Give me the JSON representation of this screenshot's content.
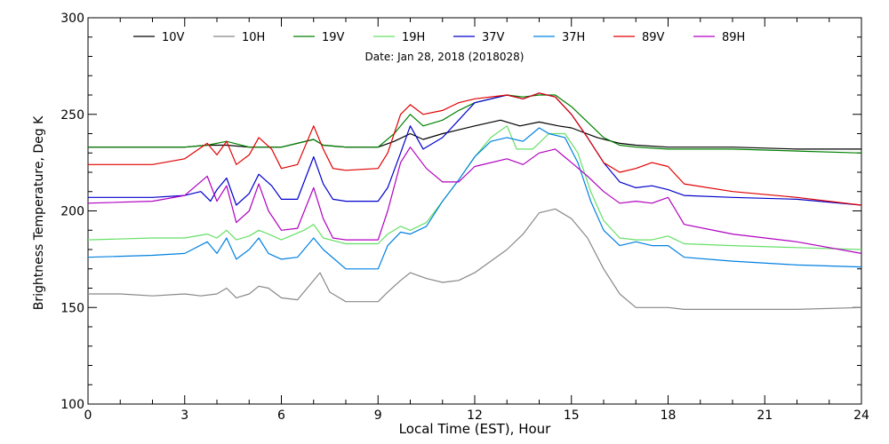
{
  "chart_data": {
    "type": "line",
    "title": "Date: Jan 28, 2018 (2018028)",
    "xlabel": "Local Time (EST), Hour",
    "ylabel": "Brightness Temperature, Deg K",
    "xlim": [
      0,
      24
    ],
    "ylim": [
      100,
      300
    ],
    "xticks": [
      0,
      3,
      6,
      9,
      12,
      15,
      18,
      21,
      24
    ],
    "yticks": [
      100,
      150,
      200,
      250,
      300
    ],
    "grid": false,
    "legend_position": "top",
    "series": [
      {
        "name": "10V",
        "color": "#000000",
        "points": [
          [
            0,
            233
          ],
          [
            2,
            233
          ],
          [
            3,
            233
          ],
          [
            3.7,
            234
          ],
          [
            4.3,
            234
          ],
          [
            5,
            233
          ],
          [
            6,
            233
          ],
          [
            7,
            237
          ],
          [
            7.3,
            234
          ],
          [
            8,
            233
          ],
          [
            9,
            233
          ],
          [
            9.5,
            236
          ],
          [
            10,
            240
          ],
          [
            10.4,
            237
          ],
          [
            11,
            240
          ],
          [
            11.5,
            242
          ],
          [
            12,
            244
          ],
          [
            12.8,
            247
          ],
          [
            13.4,
            244
          ],
          [
            14,
            246
          ],
          [
            14.6,
            244
          ],
          [
            15,
            243
          ],
          [
            15.8,
            238
          ],
          [
            16.5,
            235
          ],
          [
            17,
            234
          ],
          [
            18,
            233
          ],
          [
            20,
            233
          ],
          [
            22,
            232
          ],
          [
            24,
            232
          ]
        ]
      },
      {
        "name": "10H",
        "color": "#888888",
        "points": [
          [
            0,
            157
          ],
          [
            1,
            157
          ],
          [
            2,
            156
          ],
          [
            3,
            157
          ],
          [
            3.5,
            156
          ],
          [
            4,
            157
          ],
          [
            4.3,
            160
          ],
          [
            4.6,
            155
          ],
          [
            5,
            157
          ],
          [
            5.3,
            161
          ],
          [
            5.6,
            160
          ],
          [
            6,
            155
          ],
          [
            6.5,
            154
          ],
          [
            7,
            164
          ],
          [
            7.2,
            168
          ],
          [
            7.5,
            158
          ],
          [
            8,
            153
          ],
          [
            9,
            153
          ],
          [
            9.3,
            158
          ],
          [
            9.7,
            164
          ],
          [
            10,
            168
          ],
          [
            10.5,
            165
          ],
          [
            11,
            163
          ],
          [
            11.5,
            164
          ],
          [
            12,
            168
          ],
          [
            12.5,
            174
          ],
          [
            13,
            180
          ],
          [
            13.5,
            188
          ],
          [
            14,
            199
          ],
          [
            14.5,
            201
          ],
          [
            15,
            196
          ],
          [
            15.5,
            186
          ],
          [
            16,
            170
          ],
          [
            16.5,
            157
          ],
          [
            17,
            150
          ],
          [
            18,
            150
          ],
          [
            18.5,
            149
          ],
          [
            20,
            149
          ],
          [
            22,
            149
          ],
          [
            24,
            150
          ]
        ]
      },
      {
        "name": "19V",
        "color": "#008000",
        "points": [
          [
            0,
            233
          ],
          [
            2,
            233
          ],
          [
            3,
            233
          ],
          [
            3.7,
            234
          ],
          [
            4.3,
            236
          ],
          [
            5,
            233
          ],
          [
            6,
            233
          ],
          [
            7,
            237
          ],
          [
            7.3,
            234
          ],
          [
            8,
            233
          ],
          [
            9,
            233
          ],
          [
            9.5,
            240
          ],
          [
            10,
            250
          ],
          [
            10.4,
            244
          ],
          [
            11,
            247
          ],
          [
            11.5,
            252
          ],
          [
            12,
            256
          ],
          [
            13,
            260
          ],
          [
            13.5,
            259
          ],
          [
            14,
            260
          ],
          [
            14.5,
            260
          ],
          [
            15,
            254
          ],
          [
            15.5,
            246
          ],
          [
            16,
            238
          ],
          [
            16.5,
            234
          ],
          [
            17,
            233
          ],
          [
            18,
            232
          ],
          [
            20,
            232
          ],
          [
            22,
            231
          ],
          [
            24,
            230
          ]
        ]
      },
      {
        "name": "19H",
        "color": "#66E066",
        "points": [
          [
            0,
            185
          ],
          [
            2,
            186
          ],
          [
            3,
            186
          ],
          [
            3.7,
            188
          ],
          [
            4,
            186
          ],
          [
            4.3,
            190
          ],
          [
            4.6,
            185
          ],
          [
            5,
            187
          ],
          [
            5.3,
            190
          ],
          [
            5.6,
            188
          ],
          [
            6,
            185
          ],
          [
            6.7,
            190
          ],
          [
            7,
            193
          ],
          [
            7.3,
            186
          ],
          [
            8,
            183
          ],
          [
            9,
            183
          ],
          [
            9.3,
            188
          ],
          [
            9.7,
            192
          ],
          [
            10,
            190
          ],
          [
            10.5,
            194
          ],
          [
            11,
            205
          ],
          [
            11.5,
            216
          ],
          [
            12,
            228
          ],
          [
            12.5,
            238
          ],
          [
            13,
            244
          ],
          [
            13.3,
            232
          ],
          [
            13.8,
            232
          ],
          [
            14.3,
            240
          ],
          [
            14.8,
            240
          ],
          [
            15.2,
            230
          ],
          [
            15.6,
            210
          ],
          [
            16,
            195
          ],
          [
            16.5,
            186
          ],
          [
            17,
            185
          ],
          [
            17.5,
            185
          ],
          [
            18,
            187
          ],
          [
            18.5,
            183
          ],
          [
            20,
            182
          ],
          [
            22,
            181
          ],
          [
            24,
            180
          ]
        ]
      },
      {
        "name": "37V",
        "color": "#0000CC",
        "points": [
          [
            0,
            207
          ],
          [
            2,
            207
          ],
          [
            3,
            208
          ],
          [
            3.5,
            210
          ],
          [
            3.8,
            205
          ],
          [
            4,
            211
          ],
          [
            4.3,
            217
          ],
          [
            4.6,
            203
          ],
          [
            5,
            209
          ],
          [
            5.3,
            219
          ],
          [
            5.7,
            213
          ],
          [
            6,
            206
          ],
          [
            6.5,
            206
          ],
          [
            7,
            228
          ],
          [
            7.3,
            214
          ],
          [
            7.6,
            206
          ],
          [
            8,
            205
          ],
          [
            9,
            205
          ],
          [
            9.3,
            212
          ],
          [
            9.7,
            230
          ],
          [
            10,
            244
          ],
          [
            10.4,
            232
          ],
          [
            11,
            238
          ],
          [
            11.5,
            247
          ],
          [
            12,
            256
          ],
          [
            13,
            260
          ],
          [
            13.5,
            258
          ],
          [
            14,
            261
          ],
          [
            14.5,
            259
          ],
          [
            15,
            250
          ],
          [
            15.5,
            238
          ],
          [
            16,
            225
          ],
          [
            16.5,
            215
          ],
          [
            17,
            212
          ],
          [
            17.5,
            213
          ],
          [
            18,
            211
          ],
          [
            18.5,
            208
          ],
          [
            20,
            207
          ],
          [
            22,
            206
          ],
          [
            24,
            203
          ]
        ]
      },
      {
        "name": "37H",
        "color": "#0080E0",
        "points": [
          [
            0,
            176
          ],
          [
            2,
            177
          ],
          [
            3,
            178
          ],
          [
            3.7,
            184
          ],
          [
            4,
            178
          ],
          [
            4.3,
            186
          ],
          [
            4.6,
            175
          ],
          [
            5,
            180
          ],
          [
            5.3,
            186
          ],
          [
            5.6,
            178
          ],
          [
            6,
            175
          ],
          [
            6.5,
            176
          ],
          [
            7,
            186
          ],
          [
            7.3,
            180
          ],
          [
            8,
            170
          ],
          [
            9,
            170
          ],
          [
            9.3,
            182
          ],
          [
            9.7,
            189
          ],
          [
            10,
            188
          ],
          [
            10.5,
            192
          ],
          [
            11,
            205
          ],
          [
            11.5,
            216
          ],
          [
            12,
            228
          ],
          [
            12.5,
            236
          ],
          [
            13,
            238
          ],
          [
            13.5,
            236
          ],
          [
            14,
            243
          ],
          [
            14.3,
            240
          ],
          [
            14.8,
            238
          ],
          [
            15.2,
            225
          ],
          [
            15.6,
            205
          ],
          [
            16,
            190
          ],
          [
            16.5,
            182
          ],
          [
            17,
            184
          ],
          [
            17.5,
            182
          ],
          [
            18,
            182
          ],
          [
            18.5,
            176
          ],
          [
            20,
            174
          ],
          [
            22,
            172
          ],
          [
            24,
            171
          ]
        ]
      },
      {
        "name": "89V",
        "color": "#E00000",
        "points": [
          [
            0,
            224
          ],
          [
            2,
            224
          ],
          [
            3,
            227
          ],
          [
            3.7,
            235
          ],
          [
            4,
            229
          ],
          [
            4.3,
            236
          ],
          [
            4.6,
            224
          ],
          [
            5,
            229
          ],
          [
            5.3,
            238
          ],
          [
            5.7,
            232
          ],
          [
            6,
            222
          ],
          [
            6.5,
            224
          ],
          [
            7,
            244
          ],
          [
            7.3,
            232
          ],
          [
            7.6,
            222
          ],
          [
            8,
            221
          ],
          [
            9,
            222
          ],
          [
            9.3,
            230
          ],
          [
            9.7,
            250
          ],
          [
            10,
            255
          ],
          [
            10.4,
            250
          ],
          [
            11,
            252
          ],
          [
            11.5,
            256
          ],
          [
            12,
            258
          ],
          [
            13,
            260
          ],
          [
            13.5,
            258
          ],
          [
            14,
            261
          ],
          [
            14.5,
            259
          ],
          [
            15,
            250
          ],
          [
            15.5,
            238
          ],
          [
            16,
            225
          ],
          [
            16.5,
            220
          ],
          [
            17,
            222
          ],
          [
            17.5,
            225
          ],
          [
            18,
            223
          ],
          [
            18.5,
            214
          ],
          [
            20,
            210
          ],
          [
            22,
            207
          ],
          [
            24,
            203
          ]
        ]
      },
      {
        "name": "89H",
        "color": "#B000C0",
        "points": [
          [
            0,
            204
          ],
          [
            2,
            205
          ],
          [
            3,
            208
          ],
          [
            3.7,
            218
          ],
          [
            4,
            205
          ],
          [
            4.3,
            213
          ],
          [
            4.6,
            194
          ],
          [
            5,
            200
          ],
          [
            5.3,
            214
          ],
          [
            5.6,
            200
          ],
          [
            6,
            190
          ],
          [
            6.5,
            191
          ],
          [
            7,
            212
          ],
          [
            7.3,
            196
          ],
          [
            7.6,
            186
          ],
          [
            8,
            185
          ],
          [
            9,
            185
          ],
          [
            9.3,
            200
          ],
          [
            9.7,
            225
          ],
          [
            10,
            233
          ],
          [
            10.5,
            222
          ],
          [
            11,
            215
          ],
          [
            11.5,
            215
          ],
          [
            12,
            223
          ],
          [
            13,
            227
          ],
          [
            13.5,
            224
          ],
          [
            14,
            230
          ],
          [
            14.5,
            232
          ],
          [
            15,
            225
          ],
          [
            15.5,
            218
          ],
          [
            16,
            210
          ],
          [
            16.5,
            204
          ],
          [
            17,
            205
          ],
          [
            17.5,
            204
          ],
          [
            18,
            207
          ],
          [
            18.5,
            193
          ],
          [
            20,
            188
          ],
          [
            22,
            184
          ],
          [
            24,
            178
          ]
        ]
      }
    ]
  }
}
